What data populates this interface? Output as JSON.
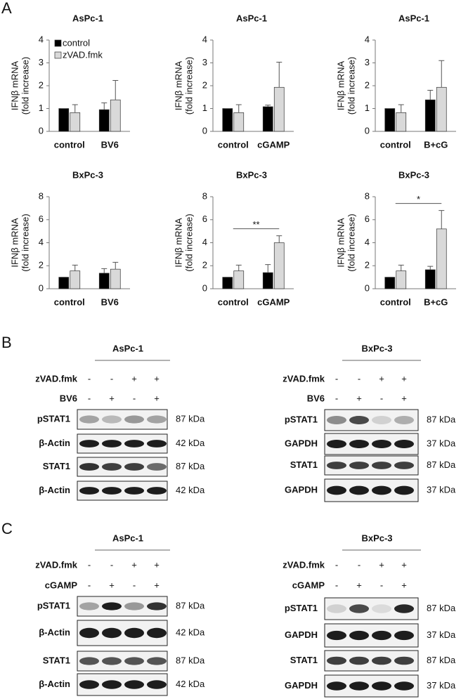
{
  "panel_labels": [
    "A",
    "B",
    "C"
  ],
  "chart_data": [
    {
      "type": "bar",
      "title": "AsPc-1",
      "ylabel": [
        "IFNβ mRNA",
        "(fold increase)"
      ],
      "categories": [
        "control",
        "BV6"
      ],
      "ylim": [
        0,
        4
      ],
      "yticks": [
        0,
        1,
        2,
        3,
        4
      ],
      "legend": true,
      "legend_position": "upper left",
      "series": [
        {
          "name": "control",
          "color": "#000000",
          "values": [
            1.0,
            0.95
          ],
          "errors": [
            0,
            0.3
          ]
        },
        {
          "name": "zVAD.fmk",
          "color": "#d9d9d9",
          "values": [
            0.82,
            1.38
          ],
          "errors": [
            0.35,
            0.85
          ]
        }
      ]
    },
    {
      "type": "bar",
      "title": "AsPc-1",
      "ylabel": [
        "IFNβ mRNA",
        "(fold increase)"
      ],
      "categories": [
        "control",
        "cGAMP"
      ],
      "ylim": [
        0,
        4
      ],
      "yticks": [
        0,
        1,
        2,
        3,
        4
      ],
      "legend": false,
      "series": [
        {
          "name": "control",
          "color": "#000000",
          "values": [
            1.0,
            1.08
          ],
          "errors": [
            0,
            0.07
          ]
        },
        {
          "name": "zVAD.fmk",
          "color": "#d9d9d9",
          "values": [
            0.82,
            1.93
          ],
          "errors": [
            0.35,
            1.1
          ]
        }
      ]
    },
    {
      "type": "bar",
      "title": "AsPc-1",
      "ylabel": [
        "IFNβ mRNA",
        "(fold increase)"
      ],
      "categories": [
        "control",
        "B+cG"
      ],
      "ylim": [
        0,
        4
      ],
      "yticks": [
        0,
        1,
        2,
        3,
        4
      ],
      "legend": false,
      "series": [
        {
          "name": "control",
          "color": "#000000",
          "values": [
            1.0,
            1.38
          ],
          "errors": [
            0,
            0.42
          ]
        },
        {
          "name": "zVAD.fmk",
          "color": "#d9d9d9",
          "values": [
            0.82,
            1.93
          ],
          "errors": [
            0.35,
            1.17
          ]
        }
      ]
    },
    {
      "type": "bar",
      "title": "BxPc-3",
      "ylabel": [
        "IFNβ mRNA",
        "(fold increase)"
      ],
      "categories": [
        "control",
        "BV6"
      ],
      "ylim": [
        0,
        8
      ],
      "yticks": [
        0,
        2,
        4,
        6,
        8
      ],
      "legend": false,
      "series": [
        {
          "name": "control",
          "color": "#000000",
          "values": [
            1.0,
            1.35
          ],
          "errors": [
            0,
            0.4
          ]
        },
        {
          "name": "zVAD.fmk",
          "color": "#d9d9d9",
          "values": [
            1.55,
            1.7
          ],
          "errors": [
            0.5,
            0.6
          ]
        }
      ]
    },
    {
      "type": "bar",
      "title": "BxPc-3",
      "ylabel": [
        "IFNβ mRNA",
        "(fold increase)"
      ],
      "categories": [
        "control",
        "cGAMP"
      ],
      "ylim": [
        0,
        8
      ],
      "yticks": [
        0,
        2,
        4,
        6,
        8
      ],
      "legend": false,
      "annotation": "**",
      "series": [
        {
          "name": "control",
          "color": "#000000",
          "values": [
            1.0,
            1.4
          ],
          "errors": [
            0,
            0.7
          ]
        },
        {
          "name": "zVAD.fmk",
          "color": "#d9d9d9",
          "values": [
            1.55,
            4.0
          ],
          "errors": [
            0.5,
            0.6
          ]
        }
      ]
    },
    {
      "type": "bar",
      "title": "BxPc-3",
      "ylabel": [
        "IFNβ mRNA",
        "(fold increase)"
      ],
      "categories": [
        "control",
        "B+cG"
      ],
      "ylim": [
        0,
        8
      ],
      "yticks": [
        0,
        2,
        4,
        6,
        8
      ],
      "legend": false,
      "annotation": "*",
      "series": [
        {
          "name": "control",
          "color": "#000000",
          "values": [
            1.0,
            1.65
          ],
          "errors": [
            0,
            0.3
          ]
        },
        {
          "name": "zVAD.fmk",
          "color": "#d9d9d9",
          "values": [
            1.55,
            5.2
          ],
          "errors": [
            0.5,
            1.6
          ]
        }
      ]
    }
  ],
  "blots": [
    {
      "cell_line": "AsPc-1",
      "treatments": [
        {
          "name": "zVAD.fmk",
          "signs": [
            "-",
            "-",
            "+",
            "+"
          ]
        },
        {
          "name": "BV6",
          "signs": [
            "-",
            "+",
            "-",
            "+"
          ]
        }
      ],
      "rows": [
        {
          "label": "pSTAT1",
          "size": "87 kDa"
        },
        {
          "label": "β-Actin",
          "size": "42 kDa"
        },
        {
          "label": "STAT1",
          "size": "87 kDa"
        },
        {
          "label": "β-Actin",
          "size": "42 kDa"
        }
      ]
    },
    {
      "cell_line": "BxPc-3",
      "treatments": [
        {
          "name": "zVAD.fmk",
          "signs": [
            "-",
            "-",
            "+",
            "+"
          ]
        },
        {
          "name": "BV6",
          "signs": [
            "-",
            "+",
            "-",
            "+"
          ]
        }
      ],
      "rows": [
        {
          "label": "pSTAT1",
          "size": "87 kDa"
        },
        {
          "label": "GAPDH",
          "size": "37 kDa"
        },
        {
          "label": "STAT1",
          "size": "87 kDa"
        },
        {
          "label": "GAPDH",
          "size": "37 kDa"
        }
      ]
    },
    {
      "cell_line": "AsPc-1",
      "treatments": [
        {
          "name": "zVAD.fmk",
          "signs": [
            "-",
            "-",
            "+",
            "+"
          ]
        },
        {
          "name": "cGAMP",
          "signs": [
            "-",
            "+",
            "-",
            "+"
          ]
        }
      ],
      "rows": [
        {
          "label": "pSTAT1",
          "size": "87 kDa"
        },
        {
          "label": "β-Actin",
          "size": "42 kDa"
        },
        {
          "label": "STAT1",
          "size": "87 kDa"
        },
        {
          "label": "β-Actin",
          "size": "42 kDa"
        }
      ]
    },
    {
      "cell_line": "BxPc-3",
      "treatments": [
        {
          "name": "zVAD.fmk",
          "signs": [
            "-",
            "-",
            "+",
            "+"
          ]
        },
        {
          "name": "cGAMP",
          "signs": [
            "-",
            "+",
            "-",
            "+"
          ]
        }
      ],
      "rows": [
        {
          "label": "pSTAT1",
          "size": "87 kDa"
        },
        {
          "label": "GAPDH",
          "size": "37 kDa"
        },
        {
          "label": "STAT1",
          "size": "87 kDa"
        },
        {
          "label": "GAPDH",
          "size": "37 kDa"
        }
      ]
    }
  ]
}
